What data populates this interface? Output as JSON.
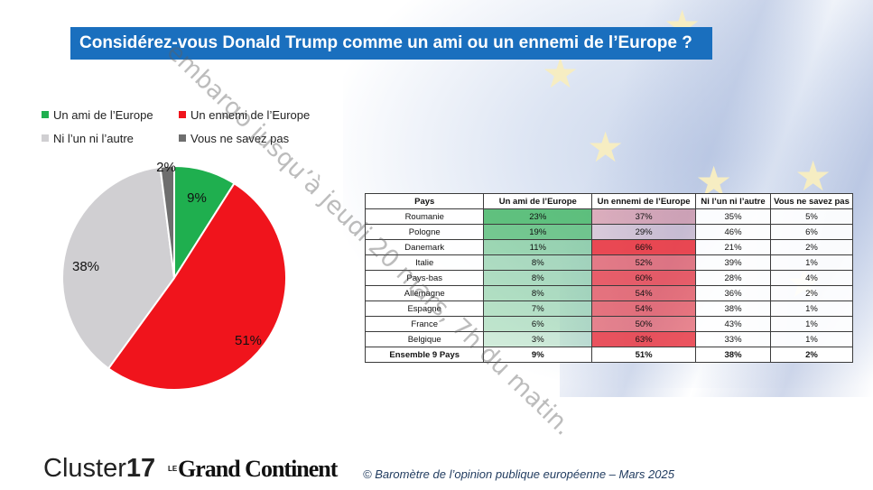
{
  "title": "Considérez-vous Donald Trump comme un ami ou un ennemi de l’Europe ?",
  "watermark": "embargo jusqu’à jeudi 20 mars, 7h du matin.",
  "colors": {
    "ami": "#1faf4f",
    "ennemi": "#f0141c",
    "ni": "#d0cfd2",
    "nsp": "#6e6e6e",
    "title_bg": "#1a6fbe"
  },
  "chart_data": {
    "type": "pie",
    "title": "Considérez-vous Donald Trump comme un ami ou un ennemi de l’Europe ?",
    "legend_position": "top-left",
    "slices": [
      {
        "label": "Un ami de l’Europe",
        "value": 9,
        "display": "9%",
        "color": "#1faf4f"
      },
      {
        "label": "Un ennemi de l’Europe",
        "value": 51,
        "display": "51%",
        "color": "#f0141c"
      },
      {
        "label": "Ni l’un ni l’autre",
        "value": 38,
        "display": "38%",
        "color": "#d0cfd2"
      },
      {
        "label": "Vous ne savez pas",
        "value": 2,
        "display": "2%",
        "color": "#6e6e6e"
      }
    ]
  },
  "table": {
    "headers": [
      "Pays",
      "Un ami de l’Europe",
      "Un ennemi de l’Europe",
      "Ni l’un ni l’autre",
      "Vous ne savez pas"
    ],
    "rows": [
      {
        "pays": "Roumanie",
        "ami": "23%",
        "ennemi": "37%",
        "ni": "35%",
        "nsp": "5%"
      },
      {
        "pays": "Pologne",
        "ami": "19%",
        "ennemi": "29%",
        "ni": "46%",
        "nsp": "6%"
      },
      {
        "pays": "Danemark",
        "ami": "11%",
        "ennemi": "66%",
        "ni": "21%",
        "nsp": "2%"
      },
      {
        "pays": "Italie",
        "ami": "8%",
        "ennemi": "52%",
        "ni": "39%",
        "nsp": "1%"
      },
      {
        "pays": "Pays-bas",
        "ami": "8%",
        "ennemi": "60%",
        "ni": "28%",
        "nsp": "4%"
      },
      {
        "pays": "Allemagne",
        "ami": "8%",
        "ennemi": "54%",
        "ni": "36%",
        "nsp": "2%"
      },
      {
        "pays": "Espagne",
        "ami": "7%",
        "ennemi": "54%",
        "ni": "38%",
        "nsp": "1%"
      },
      {
        "pays": "France",
        "ami": "6%",
        "ennemi": "50%",
        "ni": "43%",
        "nsp": "1%"
      },
      {
        "pays": "Belgique",
        "ami": "3%",
        "ennemi": "63%",
        "ni": "33%",
        "nsp": "1%"
      }
    ],
    "total": {
      "pays": "Ensemble 9 Pays",
      "ami": "9%",
      "ennemi": "51%",
      "ni": "38%",
      "nsp": "2%"
    }
  },
  "footer": {
    "logo_cluster_text": "Cluster",
    "logo_cluster_num": "17",
    "logo_gc_prefix": "LE",
    "logo_gc_text": "Grand Continent",
    "source": "© Baromètre de l’opinion publique européenne – Mars 2025"
  }
}
